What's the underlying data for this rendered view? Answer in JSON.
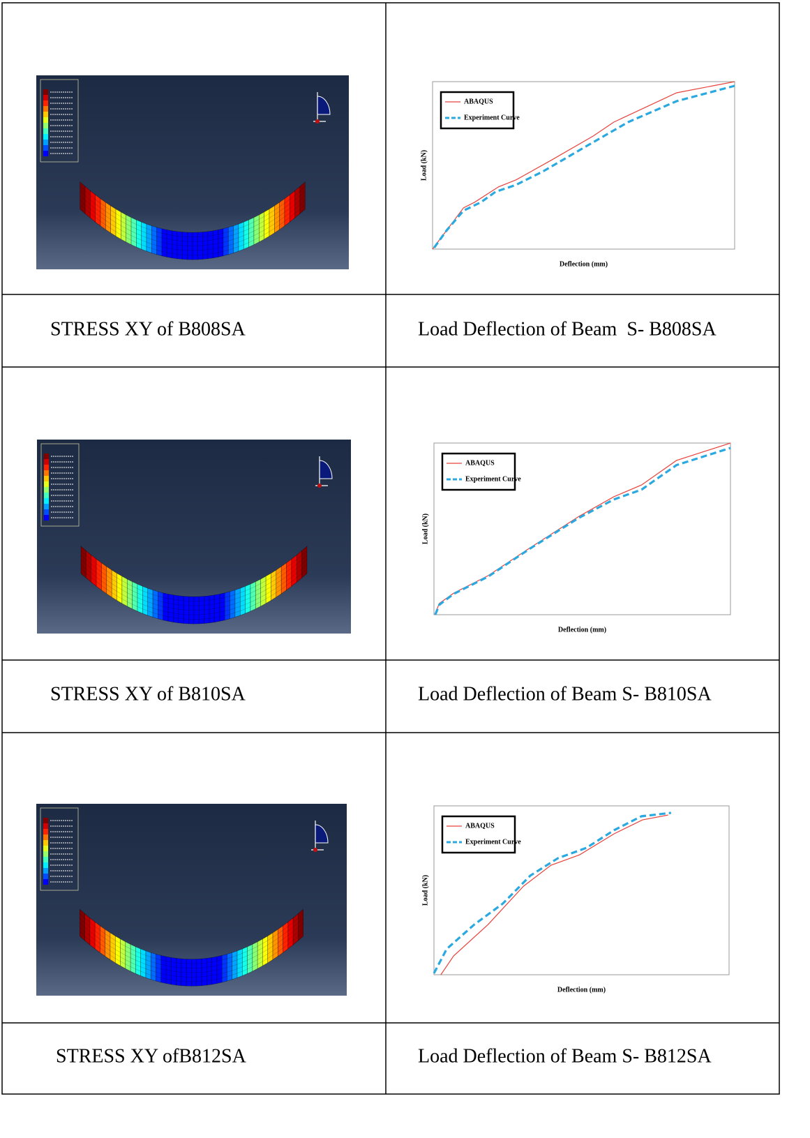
{
  "table": {
    "rows": [
      {
        "caption_left": "STRESS XY of B808SA",
        "caption_right": "Load Deflection of Beam  S- B808SA"
      },
      {
        "caption_left": "STRESS XY of B810SA",
        "caption_right": "Load Deflection of Beam S- B810SA"
      },
      {
        "caption_left": "STRESS XY ofB812SA",
        "caption_right": "Load Deflection of Beam S- B812SA"
      }
    ]
  },
  "chart_data": [
    {
      "type": "line",
      "x_label": "Deflection (mm)",
      "y_label": "Load (kN)",
      "xlim": [
        0,
        3.8
      ],
      "ylim": [
        0,
        60
      ],
      "legend": "upper left",
      "series": [
        {
          "name": "ABAQUS",
          "color": "#e8423c",
          "style": "solid",
          "x": [
            0,
            0.39,
            0.53,
            0.83,
            1.05,
            1.49,
            2.02,
            2.28,
            3.07,
            3.8
          ],
          "values": [
            0,
            14.8,
            16.8,
            22.3,
            24.8,
            31.8,
            40.5,
            45.5,
            56,
            60
          ]
        },
        {
          "name": "Experiment Curve",
          "color": "#2aa9e0",
          "style": "dashed",
          "x": [
            0.02,
            0.18,
            0.39,
            0.61,
            0.79,
            1.05,
            1.4,
            1.93,
            2.46,
            3.07,
            3.8
          ],
          "values": [
            0.5,
            6.8,
            13.8,
            16.8,
            20.5,
            23,
            28,
            36.8,
            45.5,
            53,
            58.5
          ]
        }
      ]
    },
    {
      "type": "line",
      "x_label": "Deflection (mm)",
      "y_label": "Load (kN)",
      "xlim": [
        0,
        4.5
      ],
      "ylim": [
        0,
        70
      ],
      "legend": "upper left",
      "series": [
        {
          "name": "ABAQUS",
          "color": "#e8423c",
          "style": "solid",
          "x": [
            0.02,
            0.08,
            0.3,
            0.82,
            1.46,
            2.2,
            2.73,
            3.15,
            3.68,
            4.5
          ],
          "values": [
            0.3,
            4.6,
            8.8,
            15.9,
            27.3,
            40.1,
            48.1,
            52.9,
            62.9,
            70
          ]
        },
        {
          "name": "Experiment Curve",
          "color": "#2aa9e0",
          "style": "dashed",
          "x": [
            0.02,
            0.08,
            0.3,
            0.82,
            1.46,
            2.2,
            2.73,
            3.15,
            3.68,
            4.5
          ],
          "values": [
            0,
            4,
            8.5,
            15.5,
            27,
            39.5,
            47,
            51,
            61,
            68
          ]
        }
      ]
    },
    {
      "type": "line",
      "x_label": "Deflection (mm)",
      "y_label": "Load (kN)",
      "xlim": [
        0,
        30
      ],
      "ylim": [
        0,
        70
      ],
      "legend": "upper left",
      "series": [
        {
          "name": "ABAQUS",
          "color": "#e8423c",
          "style": "solid",
          "x": [
            0.7,
            2,
            5.5,
            9.1,
            11.9,
            14.8,
            18.3,
            21.2,
            23.8
          ],
          "values": [
            0,
            7.8,
            20.8,
            36.7,
            45.4,
            49.7,
            58.4,
            64.2,
            66.2
          ]
        },
        {
          "name": "Experiment Curve",
          "color": "#2aa9e0",
          "style": "dashed",
          "x": [
            0,
            1.3,
            4.1,
            7,
            9.8,
            12.6,
            15.5,
            18.3,
            21.1,
            24.1
          ],
          "values": [
            0.6,
            10.7,
            20.8,
            29.5,
            41.1,
            48.3,
            52.6,
            59.9,
            65.7,
            67.1
          ]
        }
      ]
    }
  ]
}
